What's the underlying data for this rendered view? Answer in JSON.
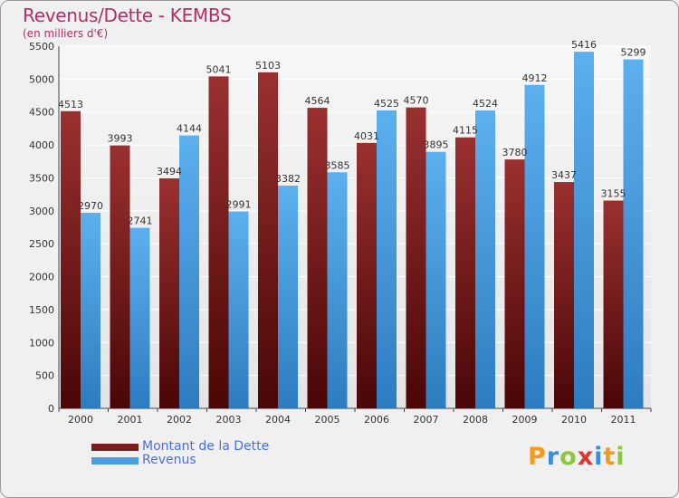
{
  "title": "Revenus/Dette - KEMBS",
  "subtitle": "(en milliers d'€)",
  "logo": {
    "text": "Proxiti",
    "letters": [
      {
        "ch": "P",
        "color": "#f59a1c"
      },
      {
        "ch": "r",
        "color": "#3a8fd8"
      },
      {
        "ch": "o",
        "color": "#8cc63e"
      },
      {
        "ch": "x",
        "color": "#e0342f"
      },
      {
        "ch": "i",
        "color": "#3a8fd8"
      },
      {
        "ch": "t",
        "color": "#f59a1c"
      },
      {
        "ch": "i",
        "color": "#8cc63e"
      }
    ]
  },
  "colors": {
    "dette": "#7a1c1c",
    "revenus": "#4a9ee0",
    "title": "#b0306a",
    "legend_text": "#4a6fe0"
  },
  "chart_data": {
    "type": "bar",
    "title": "Revenus/Dette - KEMBS",
    "subtitle": "(en milliers d'€)",
    "categories": [
      "2000",
      "2001",
      "2002",
      "2003",
      "2004",
      "2005",
      "2006",
      "2007",
      "2008",
      "2009",
      "2010",
      "2011"
    ],
    "series": [
      {
        "name": "Montant de la Dette",
        "values": [
          4513,
          3993,
          3494,
          5041,
          5103,
          4564,
          4031,
          4570,
          4115,
          3780,
          3437,
          3155
        ]
      },
      {
        "name": "Revenus",
        "values": [
          2970,
          2741,
          4144,
          2991,
          3382,
          3585,
          4525,
          3895,
          4524,
          4912,
          5416,
          5299
        ]
      }
    ],
    "ylim": [
      0,
      5500
    ],
    "yticks": [
      0,
      500,
      1000,
      1500,
      2000,
      2500,
      3000,
      3500,
      4000,
      4500,
      5000,
      5500
    ],
    "grid": true,
    "legend": "bottom-left"
  }
}
